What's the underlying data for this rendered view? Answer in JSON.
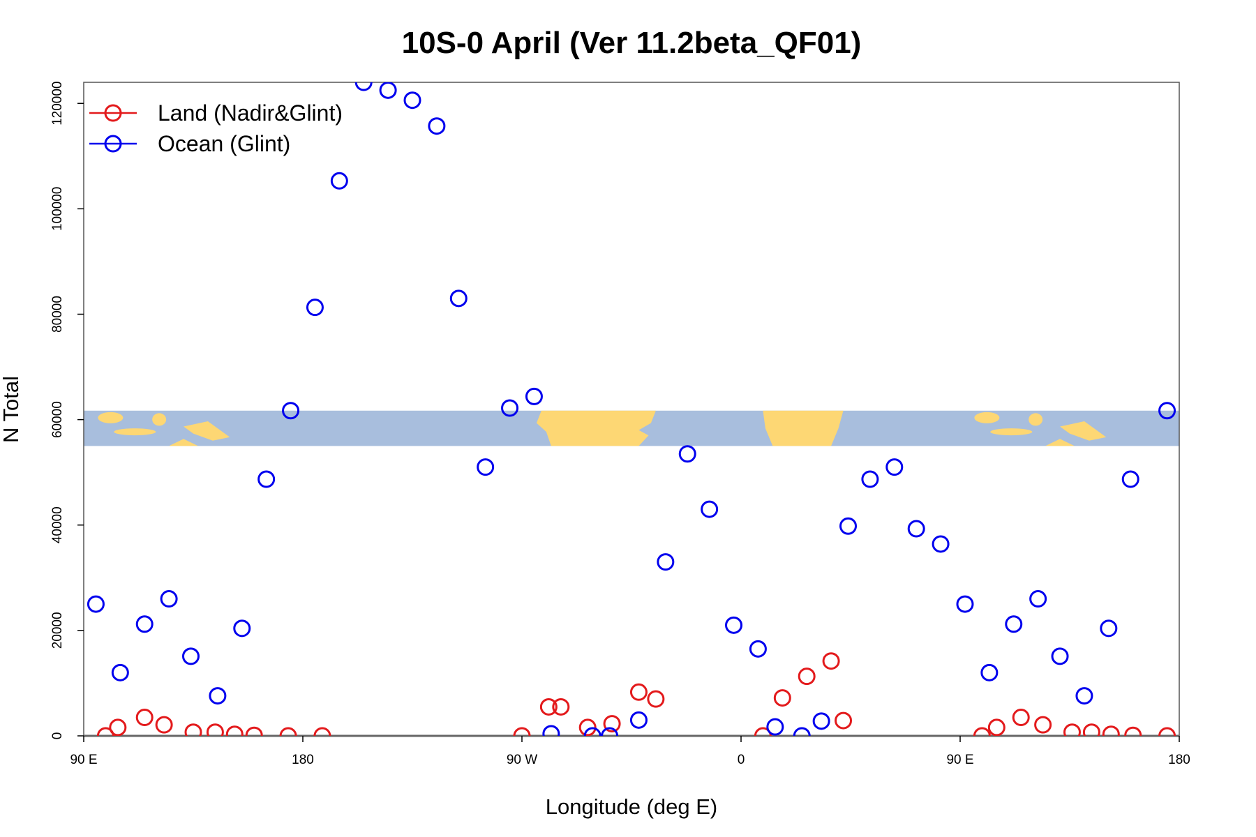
{
  "chart_data": {
    "type": "scatter",
    "title": "10S-0 April (Ver 11.2beta_QF01)",
    "xlabel": "Longitude (deg E)",
    "ylabel": "N Total",
    "xlim": [
      90,
      540
    ],
    "ylim": [
      0,
      124000
    ],
    "x_ticks": [
      {
        "value": 90,
        "label": "90 E"
      },
      {
        "value": 180,
        "label": "180"
      },
      {
        "value": 270,
        "label": "90 W"
      },
      {
        "value": 360,
        "label": "0"
      },
      {
        "value": 450,
        "label": "90 E"
      },
      {
        "value": 540,
        "label": "180"
      }
    ],
    "y_ticks": [
      {
        "value": 0,
        "label": "0"
      },
      {
        "value": 20000,
        "label": "20000"
      },
      {
        "value": 40000,
        "label": "40000"
      },
      {
        "value": 60000,
        "label": "60000"
      },
      {
        "value": 80000,
        "label": "80000"
      },
      {
        "value": 100000,
        "label": "100000"
      },
      {
        "value": 120000,
        "label": "120000"
      }
    ],
    "map_band": {
      "y_range": [
        55000,
        61700
      ],
      "ocean_color": "#a8bedd",
      "land_color": "#fdd774"
    },
    "legend": {
      "position": "top-left"
    },
    "series": [
      {
        "name": "Land (Nadir&Glint)",
        "color": "#e31a1c",
        "points": [
          [
            99,
            0
          ],
          [
            104,
            1600
          ],
          [
            115,
            3500
          ],
          [
            123,
            2100
          ],
          [
            135,
            700
          ],
          [
            144,
            700
          ],
          [
            152,
            300
          ],
          [
            160,
            100
          ],
          [
            174,
            0
          ],
          [
            188,
            0
          ],
          [
            270,
            0
          ],
          [
            281,
            5500
          ],
          [
            286,
            5500
          ],
          [
            297,
            1600
          ],
          [
            307,
            2300
          ],
          [
            318,
            8300
          ],
          [
            325,
            7000
          ],
          [
            369,
            0
          ],
          [
            377,
            7200
          ],
          [
            387,
            11300
          ],
          [
            397,
            14200
          ],
          [
            402,
            2900
          ],
          [
            459,
            0
          ],
          [
            465,
            1600
          ],
          [
            475,
            3500
          ],
          [
            484,
            2100
          ],
          [
            496,
            700
          ],
          [
            504,
            700
          ],
          [
            512,
            300
          ],
          [
            521,
            100
          ],
          [
            535,
            0
          ]
        ]
      },
      {
        "name": "Ocean (Glint)",
        "color": "#0000ee",
        "points": [
          [
            95,
            25000
          ],
          [
            105,
            12000
          ],
          [
            115,
            21200
          ],
          [
            125,
            26000
          ],
          [
            134,
            15100
          ],
          [
            145,
            7600
          ],
          [
            155,
            20400
          ],
          [
            165,
            48700
          ],
          [
            175,
            61700
          ],
          [
            185,
            81300
          ],
          [
            195,
            105300
          ],
          [
            205,
            124000
          ],
          [
            215,
            122500
          ],
          [
            225,
            120600
          ],
          [
            235,
            115700
          ],
          [
            244,
            83000
          ],
          [
            255,
            51000
          ],
          [
            265,
            62200
          ],
          [
            275,
            64400
          ],
          [
            282,
            400
          ],
          [
            299,
            0
          ],
          [
            306,
            0
          ],
          [
            318,
            3000
          ],
          [
            329,
            33000
          ],
          [
            338,
            53500
          ],
          [
            347,
            43000
          ],
          [
            357,
            21000
          ],
          [
            367,
            16500
          ],
          [
            374,
            1700
          ],
          [
            385,
            0
          ],
          [
            393,
            2800
          ],
          [
            404,
            39800
          ],
          [
            413,
            48700
          ],
          [
            423,
            51000
          ],
          [
            432,
            39300
          ],
          [
            442,
            36400
          ],
          [
            452,
            25000
          ],
          [
            462,
            12000
          ],
          [
            472,
            21200
          ],
          [
            482,
            26000
          ],
          [
            491,
            15100
          ],
          [
            501,
            7600
          ],
          [
            511,
            20400
          ],
          [
            520,
            48700
          ],
          [
            535,
            61700
          ]
        ]
      }
    ]
  }
}
